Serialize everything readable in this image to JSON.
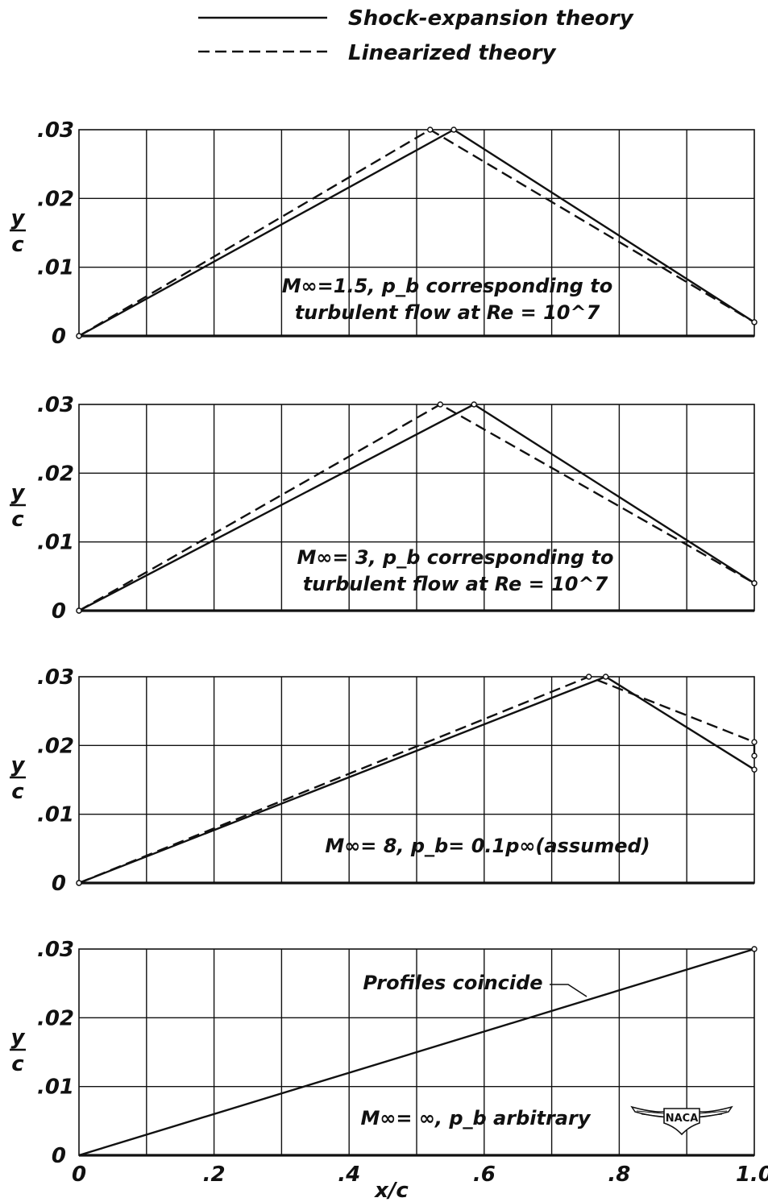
{
  "legend": {
    "shock_label": "Shock-expansion theory",
    "linear_label": "Linearized theory"
  },
  "axes": {
    "xlabel": "x/c",
    "ylabel_num": "y",
    "ylabel_den": "c",
    "x_ticks": [
      "0",
      ".2",
      ".4",
      ".6",
      ".8",
      "1.0"
    ],
    "y_ticks": [
      "0",
      ".01",
      ".02",
      ".03"
    ]
  },
  "naca_logo_text": "NACA",
  "chart_data": [
    {
      "type": "line",
      "xlabel": "x/c",
      "ylabel": "y/c",
      "xlim": [
        0,
        1.0
      ],
      "ylim": [
        0,
        0.03
      ],
      "grid": true,
      "annotation": [
        "M∞=1.5, p_b corresponding to",
        "turbulent flow at Re = 10^7"
      ],
      "series": [
        {
          "name": "Shock-expansion theory",
          "style": "solid",
          "x": [
            0,
            0.555,
            1.0
          ],
          "y": [
            0,
            0.03,
            0.002
          ]
        },
        {
          "name": "Linearized theory",
          "style": "dashed",
          "x": [
            0,
            0.52,
            1.0
          ],
          "y": [
            0,
            0.03,
            0.002
          ]
        }
      ]
    },
    {
      "type": "line",
      "xlabel": "x/c",
      "ylabel": "y/c",
      "xlim": [
        0,
        1.0
      ],
      "ylim": [
        0,
        0.03
      ],
      "grid": true,
      "annotation": [
        "M∞= 3, p_b corresponding to",
        "turbulent flow  at Re = 10^7"
      ],
      "series": [
        {
          "name": "Shock-expansion theory",
          "style": "solid",
          "x": [
            0,
            0.585,
            1.0
          ],
          "y": [
            0,
            0.03,
            0.004
          ]
        },
        {
          "name": "Linearized theory",
          "style": "dashed",
          "x": [
            0,
            0.535,
            1.0
          ],
          "y": [
            0,
            0.03,
            0.004
          ]
        }
      ]
    },
    {
      "type": "line",
      "xlabel": "x/c",
      "ylabel": "y/c",
      "xlim": [
        0,
        1.0
      ],
      "ylim": [
        0,
        0.03
      ],
      "grid": true,
      "annotation": [
        "M∞= 8, p_b= 0.1p∞(assumed)"
      ],
      "series": [
        {
          "name": "Shock-expansion theory",
          "style": "solid",
          "x": [
            0,
            0.78,
            1.0
          ],
          "y": [
            0,
            0.03,
            0.0165
          ]
        },
        {
          "name": "Linearized theory",
          "style": "dashed",
          "x": [
            0,
            0.755,
            1.0,
            1.0
          ],
          "y": [
            0,
            0.03,
            0.0205,
            0.0185
          ]
        }
      ]
    },
    {
      "type": "line",
      "xlabel": "x/c",
      "ylabel": "y/c",
      "xlim": [
        0,
        1.0
      ],
      "ylim": [
        0,
        0.03
      ],
      "grid": true,
      "annotation": [
        "M∞= ∞, p_b arbitrary"
      ],
      "callout": "Profiles coincide",
      "series": [
        {
          "name": "Shock-expansion theory",
          "style": "solid",
          "x": [
            0,
            1.0
          ],
          "y": [
            0,
            0.03
          ]
        }
      ]
    }
  ]
}
